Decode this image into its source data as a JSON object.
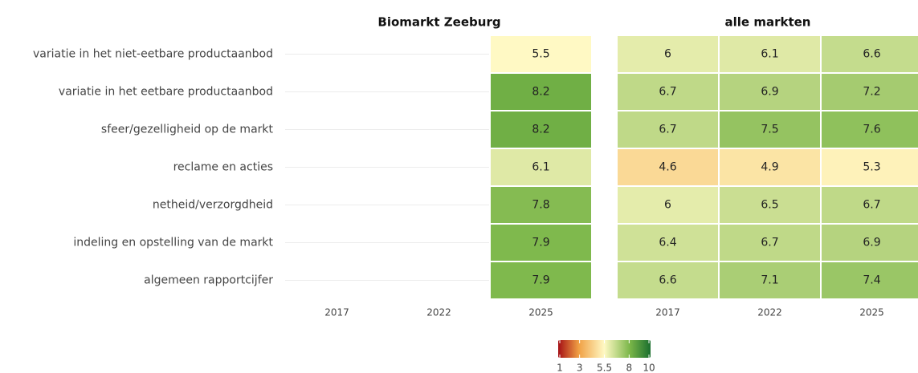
{
  "chart_data": [
    {
      "type": "heatmap",
      "title": "Biomarkt Zeeburg",
      "x": [
        "2017",
        "2022",
        "2025"
      ],
      "categories": [
        "variatie in het niet-eetbare productaanbod",
        "variatie in het eetbare productaanbod",
        "sfeer/gezelligheid op de markt",
        "reclame en acties",
        "netheid/verzorgdheid",
        "indeling en opstelling van de markt",
        "algemeen rapportcijfer"
      ],
      "values": [
        [
          null,
          null,
          5.5
        ],
        [
          null,
          null,
          8.2
        ],
        [
          null,
          null,
          8.2
        ],
        [
          null,
          null,
          6.1
        ],
        [
          null,
          null,
          7.8
        ],
        [
          null,
          null,
          7.9
        ],
        [
          null,
          null,
          7.9
        ]
      ]
    },
    {
      "type": "heatmap",
      "title": "alle markten",
      "x": [
        "2017",
        "2022",
        "2025"
      ],
      "values": [
        [
          6,
          6.1,
          6.6
        ],
        [
          6.7,
          6.9,
          7.2
        ],
        [
          6.7,
          7.5,
          7.6
        ],
        [
          4.6,
          4.9,
          5.3
        ],
        [
          6,
          6.5,
          6.7
        ],
        [
          6.4,
          6.7,
          6.9
        ],
        [
          6.6,
          7.1,
          7.4
        ]
      ]
    }
  ],
  "colorbar": {
    "lim": [
      1,
      10
    ],
    "ticks": [
      1,
      3,
      5.5,
      8,
      10
    ],
    "colors": [
      "#a50f15",
      "#f0a044",
      "#fff9c4",
      "#7ab648",
      "#1a6e2e"
    ]
  }
}
